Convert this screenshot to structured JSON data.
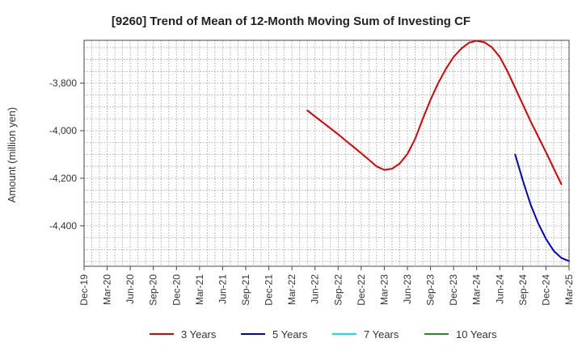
{
  "chart_data": {
    "type": "line",
    "title": "[9260]  Trend of Mean of 12-Month Moving Sum of Investing CF",
    "xlabel": "",
    "ylabel": "Amount (million yen)",
    "x_ticks": [
      "Dec-19",
      "Mar-20",
      "Jun-20",
      "Sep-20",
      "Dec-20",
      "Mar-21",
      "Jun-21",
      "Sep-21",
      "Dec-21",
      "Mar-22",
      "Jun-22",
      "Sep-22",
      "Dec-22",
      "Mar-23",
      "Jun-23",
      "Sep-23",
      "Dec-23",
      "Mar-24",
      "Jun-24",
      "Sep-24",
      "Dec-24",
      "Mar-25"
    ],
    "y_ticks": [
      -3800,
      -4000,
      -4200,
      -4400
    ],
    "y_tick_labels": [
      "-3,800",
      "-4,000",
      "-4,200",
      "-4,400"
    ],
    "xlim": [
      "2019-12",
      "2025-03"
    ],
    "ylim": [
      -4570,
      -3620
    ],
    "grid": true,
    "legend_position": "bottom",
    "series": [
      {
        "name": "3 Years",
        "color": "#dd0000",
        "points": [
          [
            "2022-05",
            -3915
          ],
          [
            "2022-06",
            -3940
          ],
          [
            "2022-07",
            -3965
          ],
          [
            "2022-08",
            -3990
          ],
          [
            "2022-09",
            -4015
          ],
          [
            "2022-10",
            -4042
          ],
          [
            "2022-11",
            -4068
          ],
          [
            "2022-12",
            -4095
          ],
          [
            "2023-01",
            -4122
          ],
          [
            "2023-02",
            -4150
          ],
          [
            "2023-03",
            -4165
          ],
          [
            "2023-04",
            -4160
          ],
          [
            "2023-05",
            -4138
          ],
          [
            "2023-06",
            -4098
          ],
          [
            "2023-07",
            -4035
          ],
          [
            "2023-08",
            -3950
          ],
          [
            "2023-09",
            -3870
          ],
          [
            "2023-10",
            -3800
          ],
          [
            "2023-11",
            -3740
          ],
          [
            "2023-12",
            -3690
          ],
          [
            "2024-01",
            -3655
          ],
          [
            "2024-02",
            -3630
          ],
          [
            "2024-03",
            -3622
          ],
          [
            "2024-04",
            -3628
          ],
          [
            "2024-05",
            -3650
          ],
          [
            "2024-06",
            -3690
          ],
          [
            "2024-07",
            -3750
          ],
          [
            "2024-08",
            -3820
          ],
          [
            "2024-09",
            -3890
          ],
          [
            "2024-10",
            -3960
          ],
          [
            "2024-11",
            -4025
          ],
          [
            "2024-12",
            -4090
          ],
          [
            "2025-01",
            -4158
          ],
          [
            "2025-02",
            -4225
          ]
        ]
      },
      {
        "name": "5 Years",
        "color": "#0000cc",
        "points": [
          [
            "2024-08",
            -4100
          ],
          [
            "2024-09",
            -4210
          ],
          [
            "2024-10",
            -4310
          ],
          [
            "2024-11",
            -4390
          ],
          [
            "2024-12",
            -4455
          ],
          [
            "2025-01",
            -4505
          ],
          [
            "2025-02",
            -4535
          ],
          [
            "2025-03",
            -4548
          ]
        ]
      },
      {
        "name": "7 Years",
        "color": "#00e5ee",
        "points": []
      },
      {
        "name": "10 Years",
        "color": "#228b22",
        "points": []
      }
    ]
  }
}
